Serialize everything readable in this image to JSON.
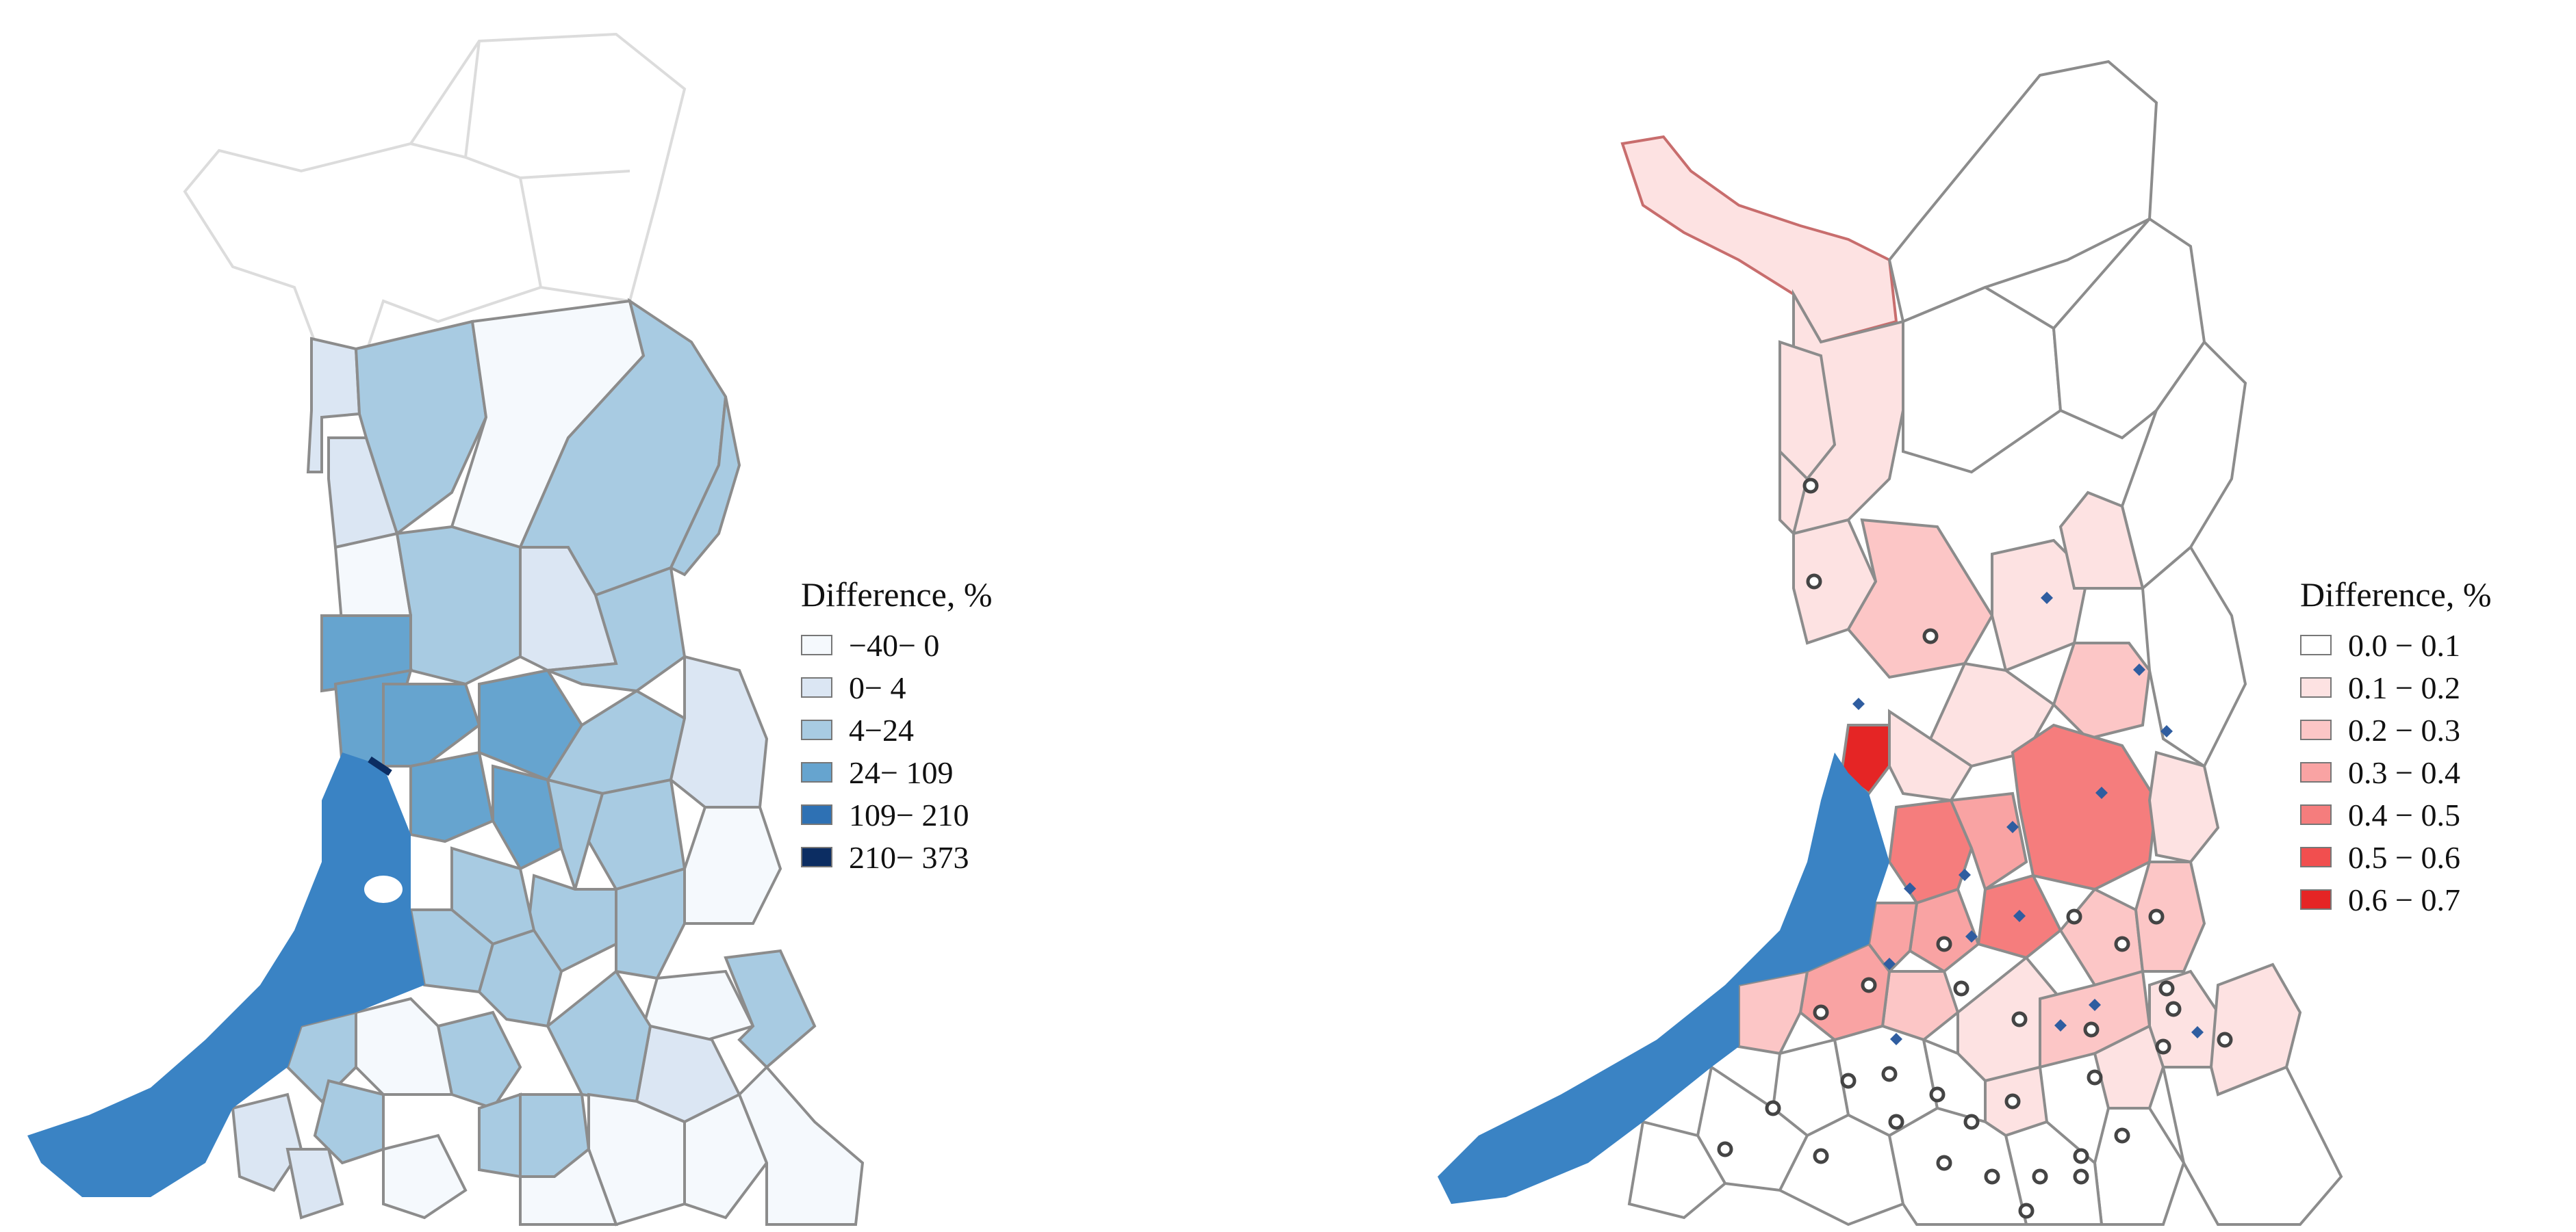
{
  "left_map": {
    "legend": {
      "title": "Difference, %",
      "entries": [
        {
          "label": "−40− 0",
          "color": "#f5f9fd"
        },
        {
          "label": "0− 4",
          "color": "#dbe6f3"
        },
        {
          "label": "4−24",
          "color": "#a8cbe2"
        },
        {
          "label": "24− 109",
          "color": "#66a4cf"
        },
        {
          "label": "109− 210",
          "color": "#2e71b4"
        },
        {
          "label": "210− 373",
          "color": "#0c2d62"
        }
      ]
    },
    "sea_color": "#3a83c4"
  },
  "right_map": {
    "legend": {
      "title": "Difference, %",
      "entries": [
        {
          "label": "0.0 − 0.1",
          "color": "#ffffff"
        },
        {
          "label": "0.1 − 0.2",
          "color": "#fde2e2"
        },
        {
          "label": "0.2 − 0.3",
          "color": "#fcc6c6"
        },
        {
          "label": "0.3 − 0.4",
          "color": "#f9a3a3"
        },
        {
          "label": "0.4 − 0.5",
          "color": "#f57d7d"
        },
        {
          "label": "0.5 − 0.6",
          "color": "#f14f4f"
        },
        {
          "label": "0.6 − 0.7",
          "color": "#e52525"
        }
      ]
    },
    "sea_color": "#3a83c4",
    "markers": {
      "circle": "open-circle-icon",
      "diamond": "diamond-icon"
    }
  }
}
